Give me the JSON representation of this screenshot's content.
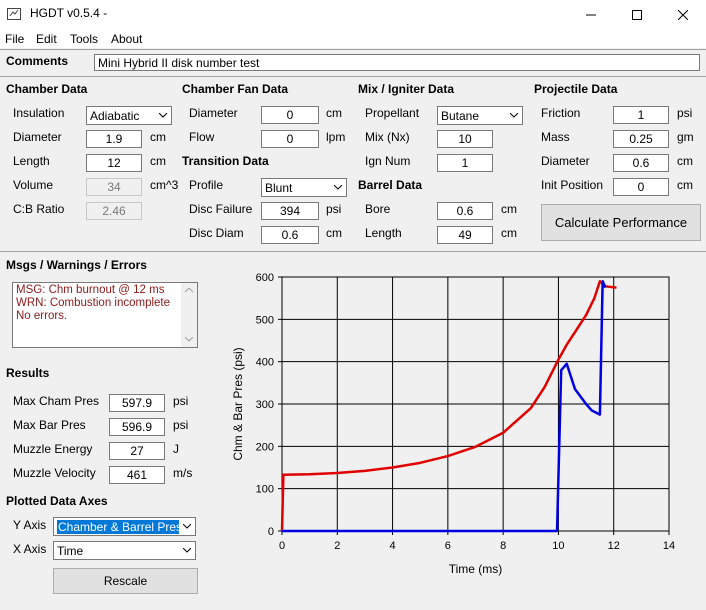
{
  "window": {
    "title": "HGDT v0.5.4 -"
  },
  "menu": [
    "File",
    "Edit",
    "Tools",
    "About"
  ],
  "comments": {
    "label": "Comments",
    "value": "Mini Hybrid II disk number test"
  },
  "chamber": {
    "title": "Chamber Data",
    "insulation_label": "Insulation",
    "insulation_value": "Adiabatic",
    "diameter_label": "Diameter",
    "diameter_value": "1.9",
    "diameter_unit": "cm",
    "length_label": "Length",
    "length_value": "12",
    "length_unit": "cm",
    "volume_label": "Volume",
    "volume_value": "34",
    "volume_unit": "cm^3",
    "cb_label": "C:B Ratio",
    "cb_value": "2.46"
  },
  "fan": {
    "title": "Chamber Fan Data",
    "diameter_label": "Diameter",
    "diameter_value": "0",
    "diameter_unit": "cm",
    "flow_label": "Flow",
    "flow_value": "0",
    "flow_unit": "lpm"
  },
  "transition": {
    "title": "Transition Data",
    "profile_label": "Profile",
    "profile_value": "Blunt",
    "failure_label": "Disc Failure",
    "failure_value": "394",
    "failure_unit": "psi",
    "diam_label": "Disc Diam",
    "diam_value": "0.6",
    "diam_unit": "cm"
  },
  "mix": {
    "title": "Mix / Igniter Data",
    "propellant_label": "Propellant",
    "propellant_value": "Butane",
    "mix_label": "Mix (Nx)",
    "mix_value": "10",
    "ign_label": "Ign Num",
    "ign_value": "1"
  },
  "barrel": {
    "title": "Barrel Data",
    "bore_label": "Bore",
    "bore_value": "0.6",
    "bore_unit": "cm",
    "length_label": "Length",
    "length_value": "49",
    "length_unit": "cm"
  },
  "projectile": {
    "title": "Projectile Data",
    "friction_label": "Friction",
    "friction_value": "1",
    "friction_unit": "psi",
    "mass_label": "Mass",
    "mass_value": "0.25",
    "mass_unit": "gm",
    "diameter_label": "Diameter",
    "diameter_value": "0.6",
    "diameter_unit": "cm",
    "init_label": "Init Position",
    "init_value": "0",
    "init_unit": "cm"
  },
  "calc_button": "Calculate Performance",
  "msgs": {
    "title": "Msgs / Warnings / Errors",
    "lines": [
      "MSG: Chm burnout @ 12 ms",
      "WRN: Combustion incomplete",
      "No errors."
    ]
  },
  "results": {
    "title": "Results",
    "cham_label": "Max Cham Pres",
    "cham_value": "597.9",
    "cham_unit": "psi",
    "bar_label": "Max Bar Pres",
    "bar_value": "596.9",
    "bar_unit": "psi",
    "energy_label": "Muzzle Energy",
    "energy_value": "27",
    "energy_unit": "J",
    "velocity_label": "Muzzle Velocity",
    "velocity_value": "461",
    "velocity_unit": "m/s"
  },
  "axes": {
    "title": "Plotted Data Axes",
    "y_label": "Y Axis",
    "y_value": "Chamber & Barrel Pressure",
    "x_label": "X Axis",
    "x_value": "Time",
    "rescale": "Rescale"
  },
  "colors": {
    "chamber": "#e00000",
    "barrel": "#0000e0"
  },
  "chart_data": {
    "type": "line",
    "xlabel": "Time (ms)",
    "ylabel": "Chm & Bar Pres (psi)",
    "xlim": [
      0,
      14
    ],
    "ylim": [
      0,
      600
    ],
    "xticks": [
      0,
      2,
      4,
      6,
      8,
      10,
      12,
      14
    ],
    "yticks": [
      0,
      100,
      200,
      300,
      400,
      500,
      600
    ],
    "grid": true,
    "series": [
      {
        "color": "#e00000",
        "x": [
          0,
          0.05,
          1,
          2,
          3,
          4,
          5,
          6,
          7,
          8,
          9,
          9.5,
          10,
          10.3,
          10.6,
          11,
          11.3,
          11.5,
          11.7,
          12.1
        ],
        "y": [
          0,
          133,
          134,
          137,
          142,
          150,
          161,
          177,
          199,
          232,
          290,
          340,
          405,
          440,
          470,
          510,
          550,
          590,
          578,
          575
        ]
      },
      {
        "color": "#0000e0",
        "x": [
          0,
          9.95,
          10.1,
          10.3,
          10.6,
          11,
          11.2,
          11.5,
          11.6,
          11.7
        ],
        "y": [
          0,
          0,
          380,
          395,
          335,
          300,
          285,
          275,
          590,
          575
        ]
      }
    ]
  }
}
